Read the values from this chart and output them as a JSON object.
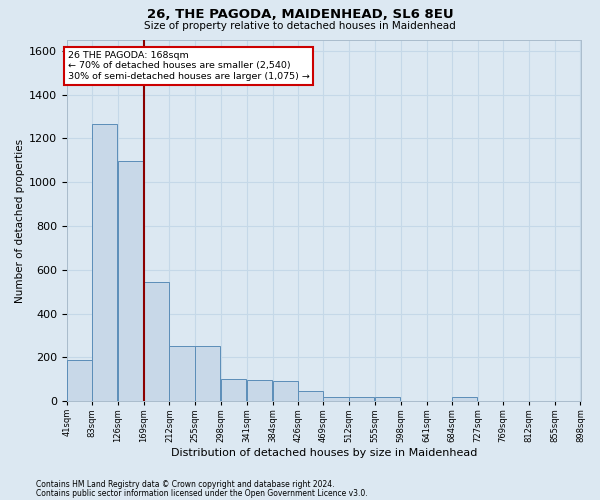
{
  "title1": "26, THE PAGODA, MAIDENHEAD, SL6 8EU",
  "title2": "Size of property relative to detached houses in Maidenhead",
  "xlabel": "Distribution of detached houses by size in Maidenhead",
  "ylabel": "Number of detached properties",
  "footer1": "Contains HM Land Registry data © Crown copyright and database right 2024.",
  "footer2": "Contains public sector information licensed under the Open Government Licence v3.0.",
  "annotation_title": "26 THE PAGODA: 168sqm",
  "annotation_line1": "← 70% of detached houses are smaller (2,540)",
  "annotation_line2": "30% of semi-detached houses are larger (1,075) →",
  "property_size_sqm": 168,
  "bin_edges": [
    41,
    83,
    126,
    169,
    212,
    255,
    298,
    341,
    384,
    426,
    469,
    512,
    555,
    598,
    641,
    684,
    727,
    769,
    812,
    855,
    898
  ],
  "bar_heights": [
    190,
    1265,
    1095,
    545,
    250,
    250,
    100,
    95,
    90,
    45,
    20,
    20,
    20,
    0,
    0,
    20,
    0,
    0,
    0,
    0
  ],
  "bar_color": "#c8d8e8",
  "bar_edge_color": "#5b8db8",
  "vline_color": "#8b0000",
  "ylim": [
    0,
    1650
  ],
  "yticks": [
    0,
    200,
    400,
    600,
    800,
    1000,
    1200,
    1400,
    1600
  ],
  "grid_color": "#c5d8e8",
  "bg_color": "#dce8f2",
  "annotation_box_facecolor": "#ffffff",
  "annotation_box_edgecolor": "#cc0000"
}
